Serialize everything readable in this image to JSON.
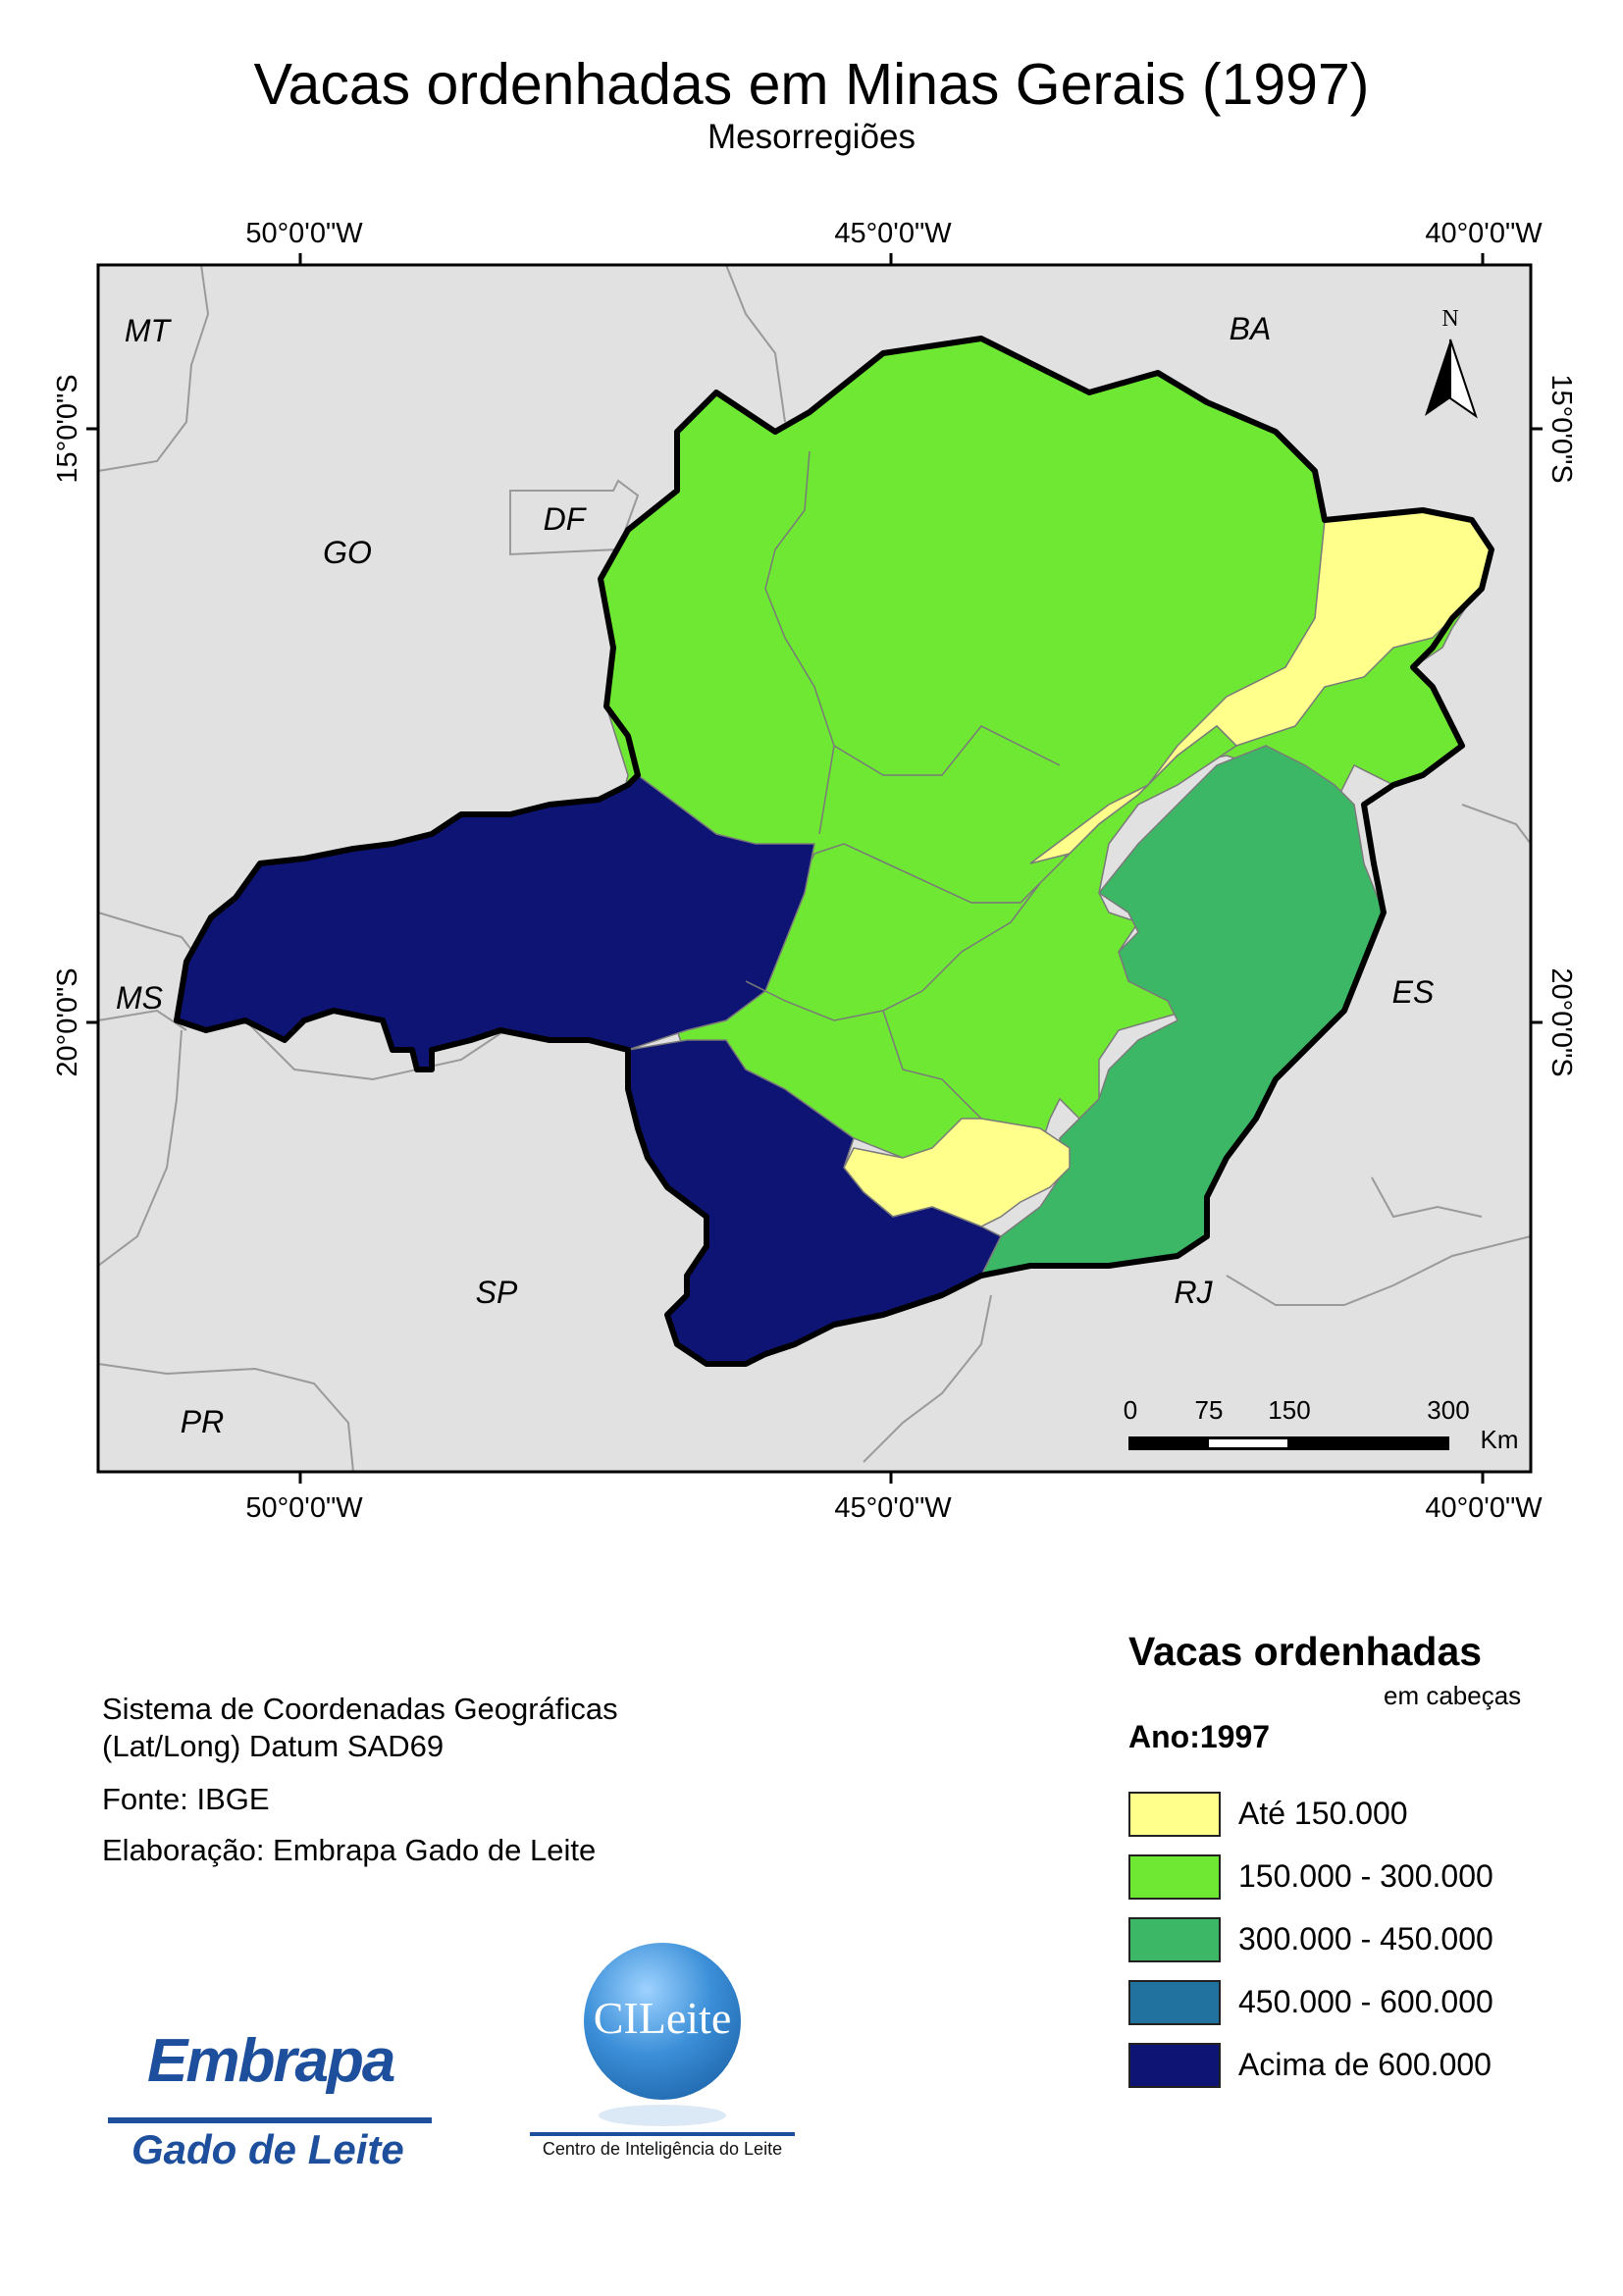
{
  "title": "Vacas ordenhadas em Minas Gerais (1997)",
  "subtitle": "Mesorregiões",
  "graticule": {
    "top_labels": [
      "50°0'0\"W",
      "45°0'0\"W",
      "40°0'0\"W"
    ],
    "bottom_labels": [
      "50°0'0\"W",
      "45°0'0\"W",
      "40°0'0\"W"
    ],
    "left_labels": [
      "15°0'0\"S",
      "20°0'0\"S"
    ],
    "right_labels": [
      "15°0'0\"S",
      "20°0'0\"S"
    ]
  },
  "state_labels": {
    "mt": "MT",
    "go": "GO",
    "df": "DF",
    "ba": "BA",
    "ms": "MS",
    "es": "ES",
    "sp": "SP",
    "rj": "RJ",
    "pr": "PR"
  },
  "north_arrow": "N",
  "scale_bar": {
    "ticks": [
      "0",
      "75",
      "150",
      "300"
    ],
    "unit": "Km"
  },
  "legend": {
    "title": "Vacas ordenhadas",
    "unit": "em cabeças",
    "year": "Ano:1997",
    "classes": [
      {
        "label": "Até 150.000",
        "color": "#ffff8c"
      },
      {
        "label": "150.000 - 300.000",
        "color": "#6ee832"
      },
      {
        "label": "300.000 - 450.000",
        "color": "#3cb766"
      },
      {
        "label": "450.000 - 600.000",
        "color": "#21729f"
      },
      {
        "label": "Acima de 600.000",
        "color": "#0e1473"
      }
    ]
  },
  "info": {
    "coord_system_1": "Sistema de Coordenadas Geográficas",
    "coord_system_2": "(Lat/Long) Datum SAD69",
    "source": "Fonte: IBGE",
    "author": "Elaboração: Embrapa Gado de Leite"
  },
  "logos": {
    "embrapa_word": "Embrapa",
    "embrapa_sub": "Gado de Leite",
    "cileite_word": "CILeite",
    "cileite_sub": "Centro de Inteligência do Leite"
  }
}
